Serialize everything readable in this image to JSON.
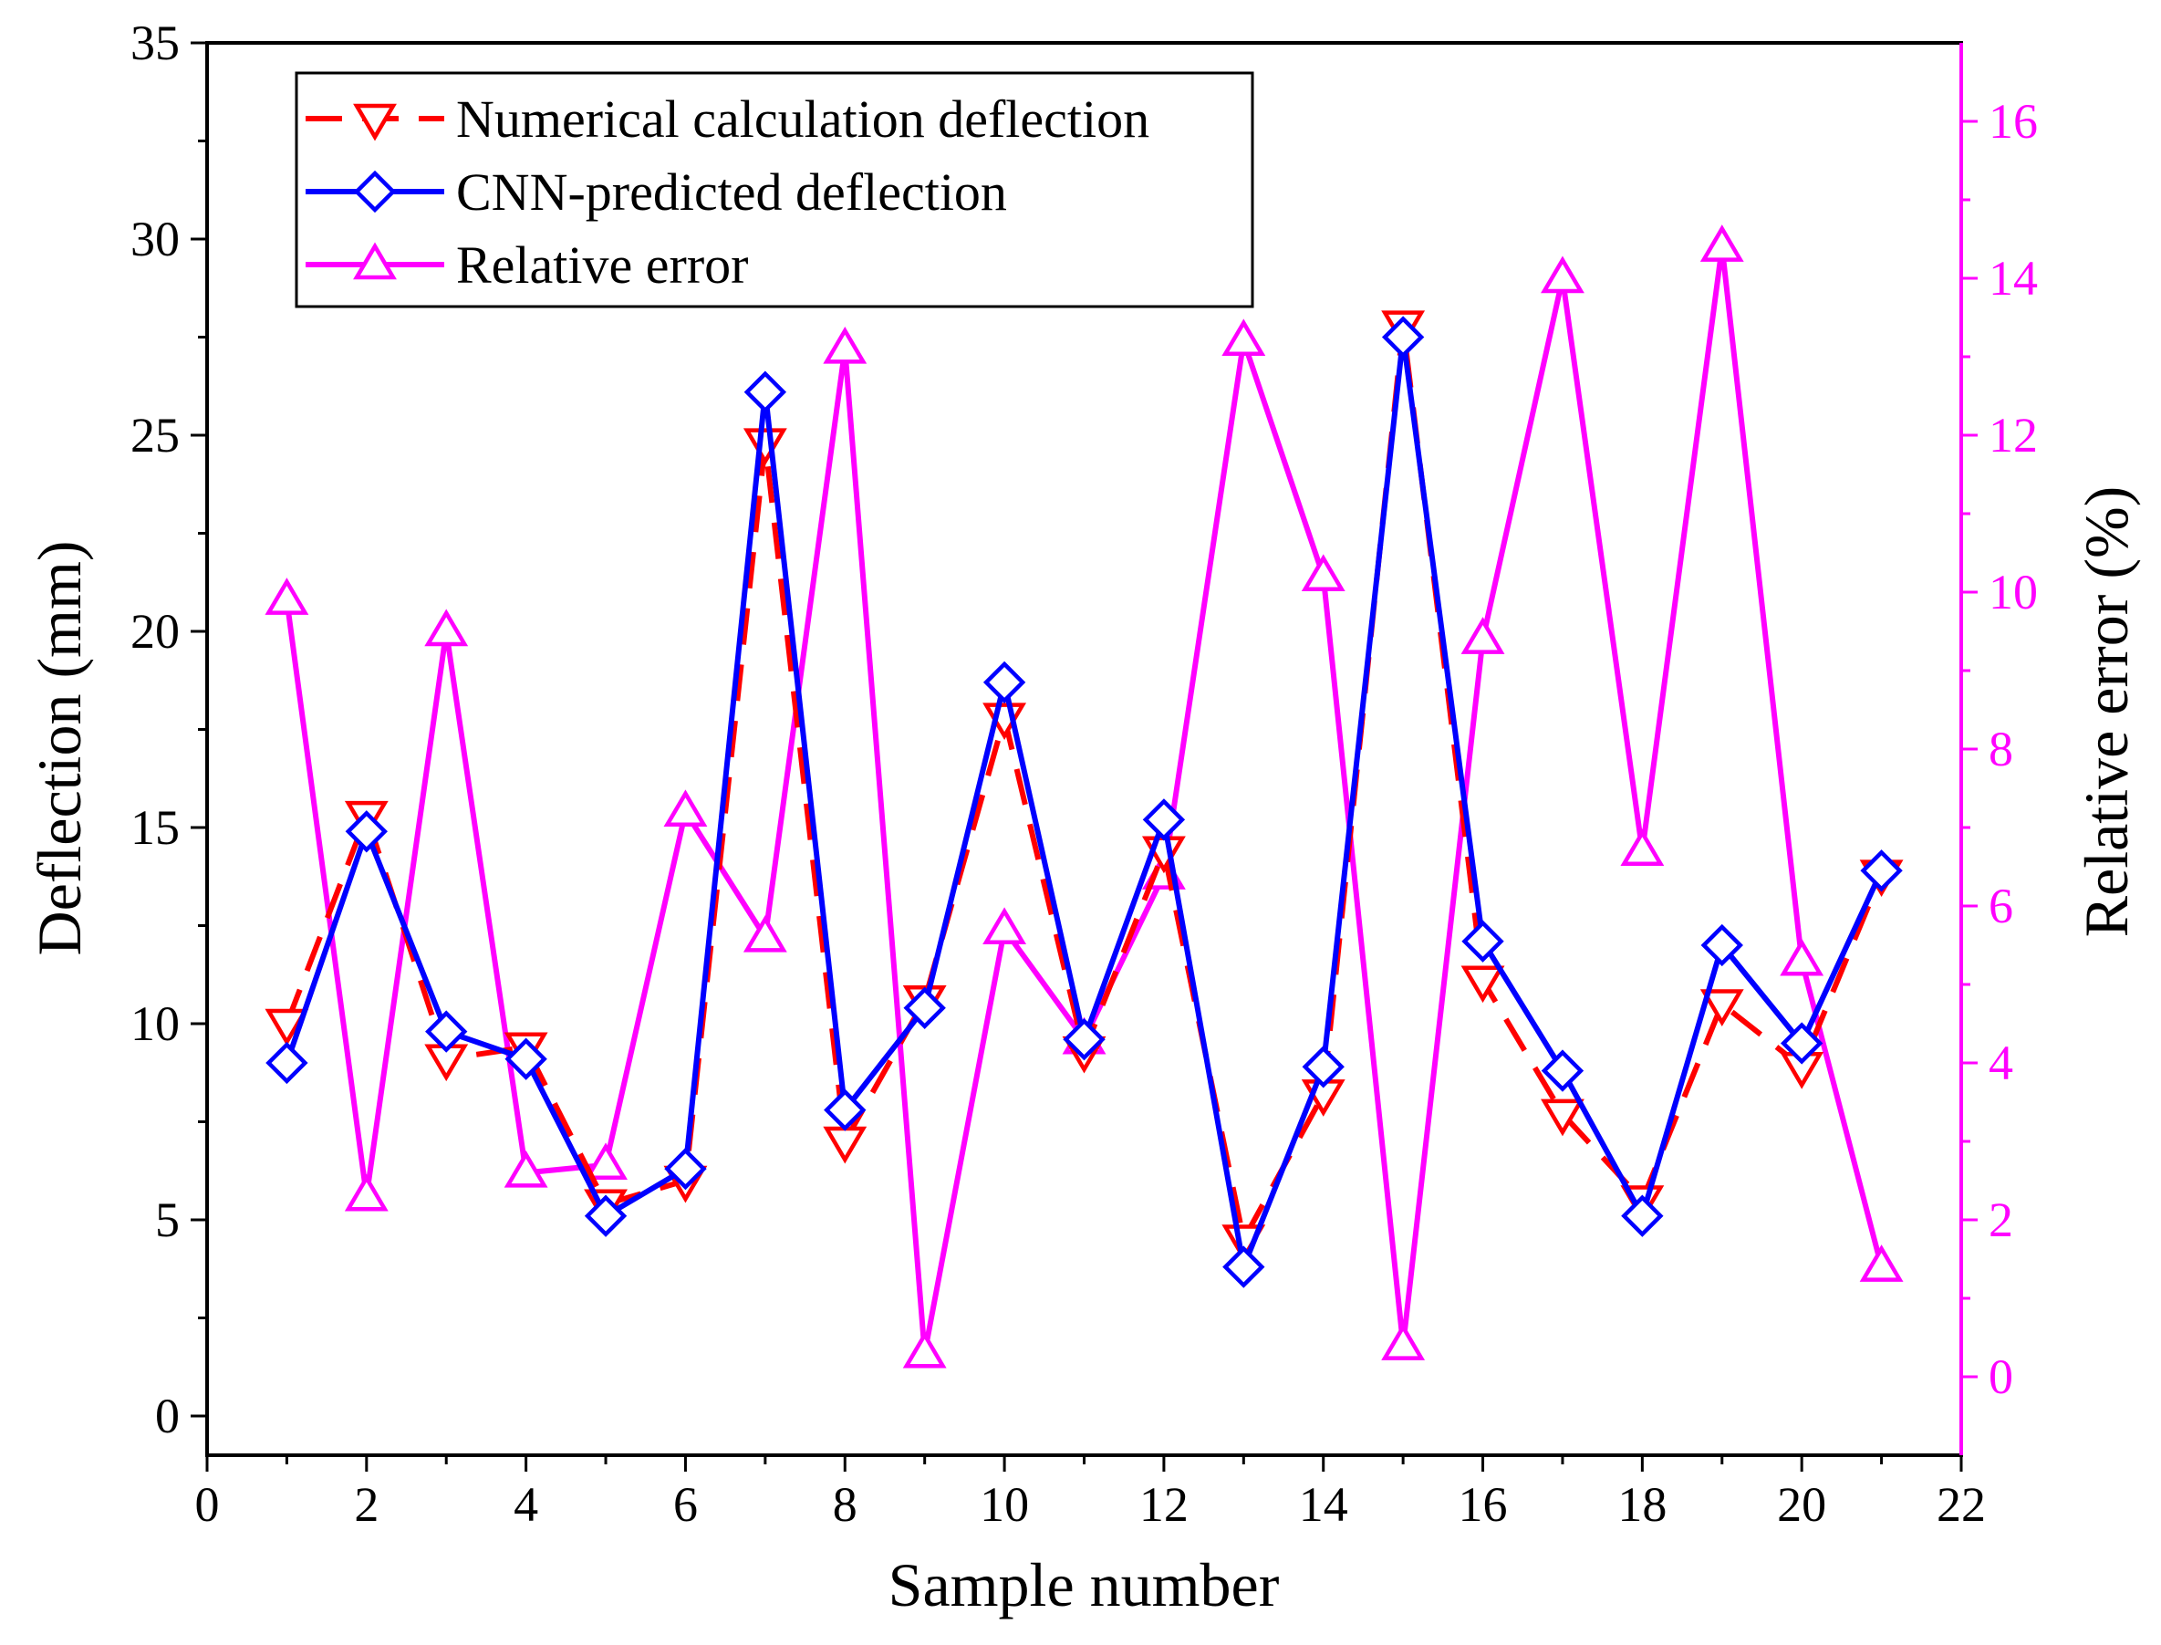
{
  "chart_data": {
    "type": "line",
    "x": [
      1,
      2,
      3,
      4,
      5,
      6,
      7,
      8,
      9,
      10,
      11,
      12,
      13,
      14,
      15,
      16,
      17,
      18,
      19,
      20,
      21
    ],
    "xlabel": "Sample number",
    "xlim": [
      0,
      22
    ],
    "xticks": [
      0,
      2,
      4,
      6,
      8,
      10,
      12,
      14,
      16,
      18,
      20,
      22
    ],
    "ylabel": "Deflection (mm)",
    "ylim": [
      -1,
      35
    ],
    "yticks": [
      0,
      5,
      10,
      15,
      20,
      25,
      30,
      35
    ],
    "y2label": "Relative error (%)",
    "y2lim": [
      -1,
      17
    ],
    "y2ticks": [
      0,
      2,
      4,
      6,
      8,
      10,
      12,
      14,
      16
    ],
    "grid": false,
    "legend_position": "top-left",
    "series": [
      {
        "name": "Numerical calculation deflection",
        "axis": "left",
        "color": "#ff0000",
        "line_style": "dashed",
        "marker": "triangle-down",
        "values": [
          10.0,
          15.3,
          9.1,
          9.4,
          5.4,
          6.0,
          24.8,
          7.0,
          10.6,
          17.8,
          9.3,
          14.4,
          4.5,
          8.2,
          27.8,
          11.1,
          7.7,
          5.5,
          10.5,
          8.9,
          13.8
        ]
      },
      {
        "name": "CNN-predicted deflection",
        "axis": "left",
        "color": "#0000ff",
        "line_style": "solid",
        "marker": "diamond",
        "values": [
          9.0,
          14.9,
          9.8,
          9.1,
          5.1,
          6.3,
          26.1,
          7.8,
          10.4,
          18.7,
          9.6,
          15.2,
          3.8,
          8.9,
          27.5,
          12.1,
          8.8,
          5.1,
          12.0,
          9.5,
          13.9
        ]
      },
      {
        "name": "Relative error",
        "axis": "right",
        "color": "#ff00ff",
        "line_style": "solid",
        "marker": "triangle-up",
        "values": [
          9.9,
          2.3,
          9.5,
          2.6,
          2.7,
          7.2,
          5.6,
          13.1,
          0.3,
          5.7,
          4.3,
          6.4,
          13.2,
          10.2,
          0.4,
          9.4,
          14.0,
          6.7,
          14.4,
          5.3,
          1.4
        ]
      }
    ]
  }
}
